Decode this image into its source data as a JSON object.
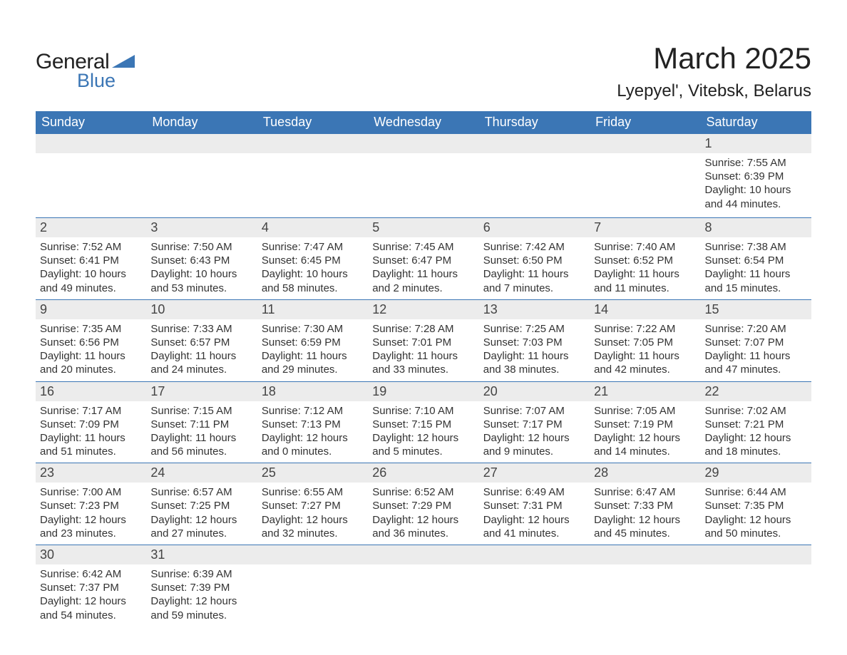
{
  "logo": {
    "text1": "General",
    "text2": "Blue",
    "shape_color": "#3b76b5"
  },
  "title": "March 2025",
  "location": "Lyepyel', Vitebsk, Belarus",
  "theme": {
    "header_bg": "#3b76b5",
    "header_text": "#ffffff",
    "daynum_bg": "#ececec",
    "border_color": "#3b76b5",
    "text_color": "#333333",
    "font_family": "Arial",
    "title_fontsize": 42,
    "location_fontsize": 24,
    "header_fontsize": 18,
    "daynum_fontsize": 18,
    "body_fontsize": 15
  },
  "day_headers": [
    "Sunday",
    "Monday",
    "Tuesday",
    "Wednesday",
    "Thursday",
    "Friday",
    "Saturday"
  ],
  "weeks": [
    [
      null,
      null,
      null,
      null,
      null,
      null,
      {
        "n": "1",
        "sunrise": "Sunrise: 7:55 AM",
        "sunset": "Sunset: 6:39 PM",
        "daylight1": "Daylight: 10 hours",
        "daylight2": "and 44 minutes."
      }
    ],
    [
      {
        "n": "2",
        "sunrise": "Sunrise: 7:52 AM",
        "sunset": "Sunset: 6:41 PM",
        "daylight1": "Daylight: 10 hours",
        "daylight2": "and 49 minutes."
      },
      {
        "n": "3",
        "sunrise": "Sunrise: 7:50 AM",
        "sunset": "Sunset: 6:43 PM",
        "daylight1": "Daylight: 10 hours",
        "daylight2": "and 53 minutes."
      },
      {
        "n": "4",
        "sunrise": "Sunrise: 7:47 AM",
        "sunset": "Sunset: 6:45 PM",
        "daylight1": "Daylight: 10 hours",
        "daylight2": "and 58 minutes."
      },
      {
        "n": "5",
        "sunrise": "Sunrise: 7:45 AM",
        "sunset": "Sunset: 6:47 PM",
        "daylight1": "Daylight: 11 hours",
        "daylight2": "and 2 minutes."
      },
      {
        "n": "6",
        "sunrise": "Sunrise: 7:42 AM",
        "sunset": "Sunset: 6:50 PM",
        "daylight1": "Daylight: 11 hours",
        "daylight2": "and 7 minutes."
      },
      {
        "n": "7",
        "sunrise": "Sunrise: 7:40 AM",
        "sunset": "Sunset: 6:52 PM",
        "daylight1": "Daylight: 11 hours",
        "daylight2": "and 11 minutes."
      },
      {
        "n": "8",
        "sunrise": "Sunrise: 7:38 AM",
        "sunset": "Sunset: 6:54 PM",
        "daylight1": "Daylight: 11 hours",
        "daylight2": "and 15 minutes."
      }
    ],
    [
      {
        "n": "9",
        "sunrise": "Sunrise: 7:35 AM",
        "sunset": "Sunset: 6:56 PM",
        "daylight1": "Daylight: 11 hours",
        "daylight2": "and 20 minutes."
      },
      {
        "n": "10",
        "sunrise": "Sunrise: 7:33 AM",
        "sunset": "Sunset: 6:57 PM",
        "daylight1": "Daylight: 11 hours",
        "daylight2": "and 24 minutes."
      },
      {
        "n": "11",
        "sunrise": "Sunrise: 7:30 AM",
        "sunset": "Sunset: 6:59 PM",
        "daylight1": "Daylight: 11 hours",
        "daylight2": "and 29 minutes."
      },
      {
        "n": "12",
        "sunrise": "Sunrise: 7:28 AM",
        "sunset": "Sunset: 7:01 PM",
        "daylight1": "Daylight: 11 hours",
        "daylight2": "and 33 minutes."
      },
      {
        "n": "13",
        "sunrise": "Sunrise: 7:25 AM",
        "sunset": "Sunset: 7:03 PM",
        "daylight1": "Daylight: 11 hours",
        "daylight2": "and 38 minutes."
      },
      {
        "n": "14",
        "sunrise": "Sunrise: 7:22 AM",
        "sunset": "Sunset: 7:05 PM",
        "daylight1": "Daylight: 11 hours",
        "daylight2": "and 42 minutes."
      },
      {
        "n": "15",
        "sunrise": "Sunrise: 7:20 AM",
        "sunset": "Sunset: 7:07 PM",
        "daylight1": "Daylight: 11 hours",
        "daylight2": "and 47 minutes."
      }
    ],
    [
      {
        "n": "16",
        "sunrise": "Sunrise: 7:17 AM",
        "sunset": "Sunset: 7:09 PM",
        "daylight1": "Daylight: 11 hours",
        "daylight2": "and 51 minutes."
      },
      {
        "n": "17",
        "sunrise": "Sunrise: 7:15 AM",
        "sunset": "Sunset: 7:11 PM",
        "daylight1": "Daylight: 11 hours",
        "daylight2": "and 56 minutes."
      },
      {
        "n": "18",
        "sunrise": "Sunrise: 7:12 AM",
        "sunset": "Sunset: 7:13 PM",
        "daylight1": "Daylight: 12 hours",
        "daylight2": "and 0 minutes."
      },
      {
        "n": "19",
        "sunrise": "Sunrise: 7:10 AM",
        "sunset": "Sunset: 7:15 PM",
        "daylight1": "Daylight: 12 hours",
        "daylight2": "and 5 minutes."
      },
      {
        "n": "20",
        "sunrise": "Sunrise: 7:07 AM",
        "sunset": "Sunset: 7:17 PM",
        "daylight1": "Daylight: 12 hours",
        "daylight2": "and 9 minutes."
      },
      {
        "n": "21",
        "sunrise": "Sunrise: 7:05 AM",
        "sunset": "Sunset: 7:19 PM",
        "daylight1": "Daylight: 12 hours",
        "daylight2": "and 14 minutes."
      },
      {
        "n": "22",
        "sunrise": "Sunrise: 7:02 AM",
        "sunset": "Sunset: 7:21 PM",
        "daylight1": "Daylight: 12 hours",
        "daylight2": "and 18 minutes."
      }
    ],
    [
      {
        "n": "23",
        "sunrise": "Sunrise: 7:00 AM",
        "sunset": "Sunset: 7:23 PM",
        "daylight1": "Daylight: 12 hours",
        "daylight2": "and 23 minutes."
      },
      {
        "n": "24",
        "sunrise": "Sunrise: 6:57 AM",
        "sunset": "Sunset: 7:25 PM",
        "daylight1": "Daylight: 12 hours",
        "daylight2": "and 27 minutes."
      },
      {
        "n": "25",
        "sunrise": "Sunrise: 6:55 AM",
        "sunset": "Sunset: 7:27 PM",
        "daylight1": "Daylight: 12 hours",
        "daylight2": "and 32 minutes."
      },
      {
        "n": "26",
        "sunrise": "Sunrise: 6:52 AM",
        "sunset": "Sunset: 7:29 PM",
        "daylight1": "Daylight: 12 hours",
        "daylight2": "and 36 minutes."
      },
      {
        "n": "27",
        "sunrise": "Sunrise: 6:49 AM",
        "sunset": "Sunset: 7:31 PM",
        "daylight1": "Daylight: 12 hours",
        "daylight2": "and 41 minutes."
      },
      {
        "n": "28",
        "sunrise": "Sunrise: 6:47 AM",
        "sunset": "Sunset: 7:33 PM",
        "daylight1": "Daylight: 12 hours",
        "daylight2": "and 45 minutes."
      },
      {
        "n": "29",
        "sunrise": "Sunrise: 6:44 AM",
        "sunset": "Sunset: 7:35 PM",
        "daylight1": "Daylight: 12 hours",
        "daylight2": "and 50 minutes."
      }
    ],
    [
      {
        "n": "30",
        "sunrise": "Sunrise: 6:42 AM",
        "sunset": "Sunset: 7:37 PM",
        "daylight1": "Daylight: 12 hours",
        "daylight2": "and 54 minutes."
      },
      {
        "n": "31",
        "sunrise": "Sunrise: 6:39 AM",
        "sunset": "Sunset: 7:39 PM",
        "daylight1": "Daylight: 12 hours",
        "daylight2": "and 59 minutes."
      },
      null,
      null,
      null,
      null,
      null
    ]
  ]
}
